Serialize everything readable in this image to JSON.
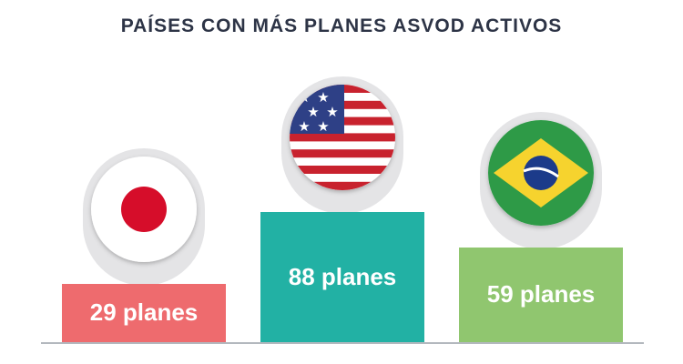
{
  "title": "PAÍSES CON MÁS PLANES ASVOD ACTIVOS",
  "colors": {
    "title": "#2d3446",
    "baseline": "#9aa0a8",
    "pedestal": "#e4e4e6"
  },
  "chart_data": {
    "type": "bar",
    "title": "PAÍSES CON MÁS PLANES ASVOD ACTIVOS",
    "categories": [
      "Japón",
      "Estados Unidos",
      "Brasil"
    ],
    "values": [
      29,
      88,
      59
    ],
    "labels": [
      "29 planes",
      "88 planes",
      "59 planes"
    ],
    "colors": [
      "#ee6b6e",
      "#22b1a4",
      "#90c66f"
    ],
    "icons": [
      "japan-flag-icon",
      "usa-flag-icon",
      "brazil-flag-icon"
    ],
    "ylim": [
      0,
      100
    ],
    "grid": false,
    "legend": "none"
  }
}
